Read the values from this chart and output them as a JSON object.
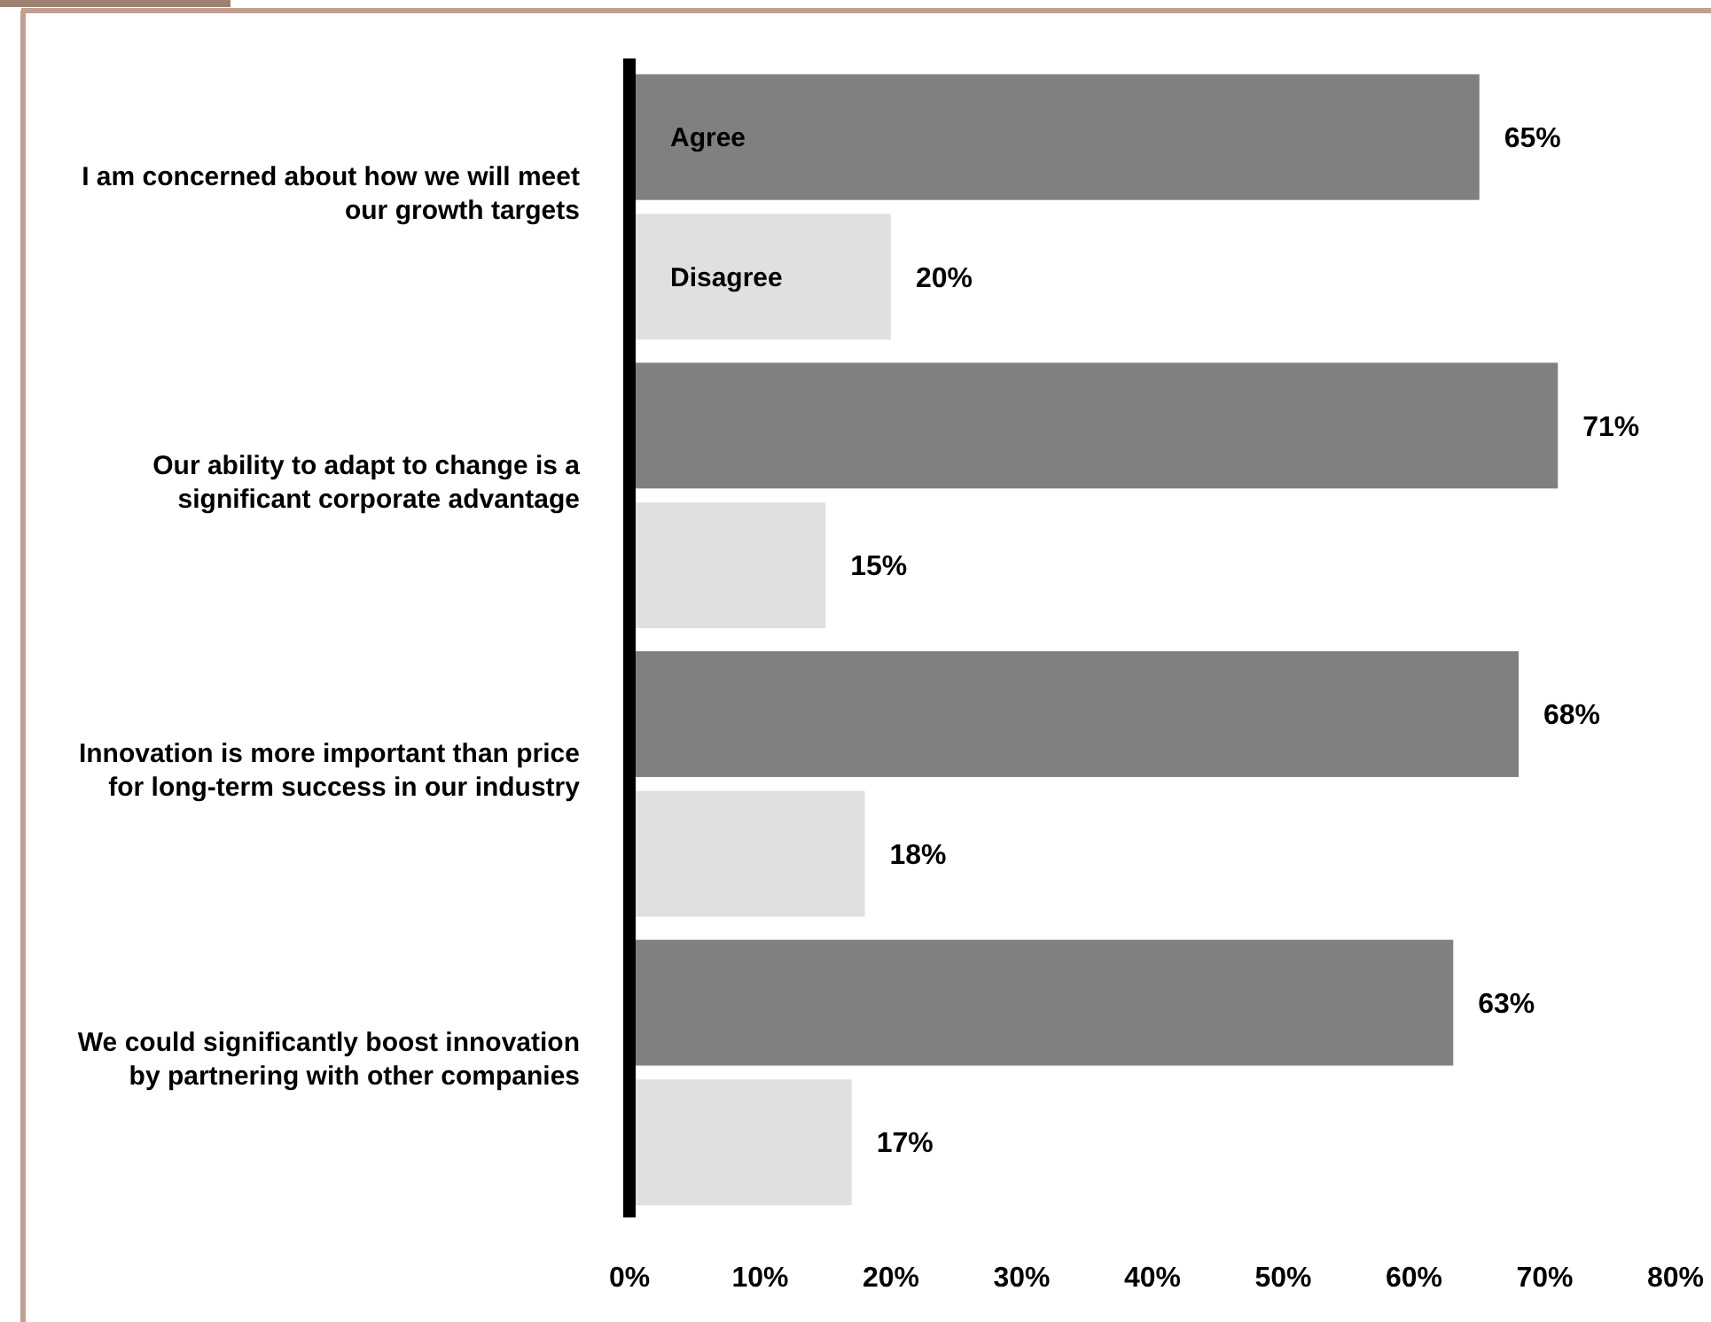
{
  "chart_data": {
    "type": "bar",
    "orientation": "horizontal",
    "categories": [
      "I am concerned about how we will meet our growth targets",
      "Our ability to adapt to change is a significant corporate advantage",
      "Innovation is more important than price for long-term success in our industry",
      "We could significantly boost innovation by partnering with other companies"
    ],
    "series": [
      {
        "name": "Agree",
        "color": "#808080",
        "values": [
          65,
          71,
          68,
          63
        ],
        "value_labels": [
          "65%",
          "71%",
          "68%",
          "63%"
        ]
      },
      {
        "name": "Disagree",
        "color": "#e0e0e0",
        "values": [
          20,
          15,
          18,
          17
        ],
        "value_labels": [
          "20%",
          "15%",
          "18%",
          "17%"
        ]
      }
    ],
    "xlim": [
      0,
      80
    ],
    "xticks": [
      {
        "value": 0,
        "label": "0%"
      },
      {
        "value": 10,
        "label": "10%"
      },
      {
        "value": 20,
        "label": "20%"
      },
      {
        "value": 30,
        "label": "30%"
      },
      {
        "value": 40,
        "label": "40%"
      },
      {
        "value": 50,
        "label": "50%"
      },
      {
        "value": 60,
        "label": "60%"
      },
      {
        "value": 70,
        "label": "70%"
      },
      {
        "value": 80,
        "label": "80%"
      }
    ],
    "grid": false,
    "legend": false
  }
}
